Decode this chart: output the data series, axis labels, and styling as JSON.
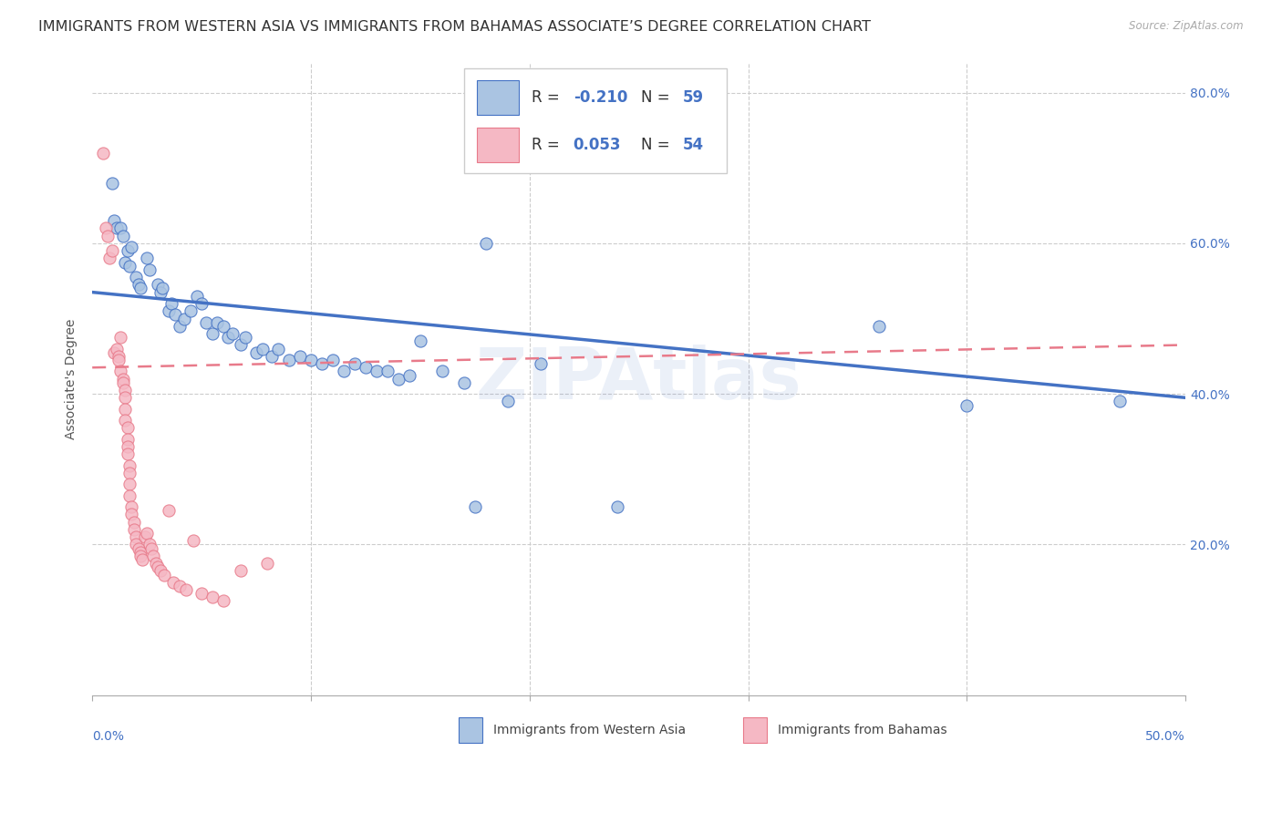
{
  "title": "IMMIGRANTS FROM WESTERN ASIA VS IMMIGRANTS FROM BAHAMAS ASSOCIATE’S DEGREE CORRELATION CHART",
  "source": "Source: ZipAtlas.com",
  "ylabel": "Associate's Degree",
  "xlim": [
    0.0,
    0.5
  ],
  "ylim": [
    0.0,
    0.84
  ],
  "xtick_ends": [
    0.0,
    0.5
  ],
  "xticklabels_ends": [
    "0.0%",
    "50.0%"
  ],
  "yticks": [
    0.0,
    0.2,
    0.4,
    0.6,
    0.8
  ],
  "yticklabels_right": [
    "",
    "20.0%",
    "40.0%",
    "60.0%",
    "80.0%"
  ],
  "watermark": "ZIPAtlas",
  "blue_color": "#aac4e2",
  "pink_color": "#f5b8c4",
  "blue_line_color": "#4472c4",
  "pink_line_color": "#e87a8a",
  "blue_scatter": [
    [
      0.009,
      0.68
    ],
    [
      0.01,
      0.63
    ],
    [
      0.011,
      0.62
    ],
    [
      0.013,
      0.62
    ],
    [
      0.014,
      0.61
    ],
    [
      0.015,
      0.575
    ],
    [
      0.016,
      0.59
    ],
    [
      0.017,
      0.57
    ],
    [
      0.018,
      0.595
    ],
    [
      0.02,
      0.555
    ],
    [
      0.021,
      0.545
    ],
    [
      0.022,
      0.54
    ],
    [
      0.025,
      0.58
    ],
    [
      0.026,
      0.565
    ],
    [
      0.03,
      0.545
    ],
    [
      0.031,
      0.535
    ],
    [
      0.032,
      0.54
    ],
    [
      0.035,
      0.51
    ],
    [
      0.036,
      0.52
    ],
    [
      0.038,
      0.505
    ],
    [
      0.04,
      0.49
    ],
    [
      0.042,
      0.5
    ],
    [
      0.045,
      0.51
    ],
    [
      0.048,
      0.53
    ],
    [
      0.05,
      0.52
    ],
    [
      0.052,
      0.495
    ],
    [
      0.055,
      0.48
    ],
    [
      0.057,
      0.495
    ],
    [
      0.06,
      0.49
    ],
    [
      0.062,
      0.475
    ],
    [
      0.064,
      0.48
    ],
    [
      0.068,
      0.465
    ],
    [
      0.07,
      0.475
    ],
    [
      0.075,
      0.455
    ],
    [
      0.078,
      0.46
    ],
    [
      0.082,
      0.45
    ],
    [
      0.085,
      0.46
    ],
    [
      0.09,
      0.445
    ],
    [
      0.095,
      0.45
    ],
    [
      0.1,
      0.445
    ],
    [
      0.105,
      0.44
    ],
    [
      0.11,
      0.445
    ],
    [
      0.115,
      0.43
    ],
    [
      0.12,
      0.44
    ],
    [
      0.125,
      0.435
    ],
    [
      0.13,
      0.43
    ],
    [
      0.135,
      0.43
    ],
    [
      0.14,
      0.42
    ],
    [
      0.145,
      0.425
    ],
    [
      0.15,
      0.47
    ],
    [
      0.16,
      0.43
    ],
    [
      0.17,
      0.415
    ],
    [
      0.175,
      0.25
    ],
    [
      0.18,
      0.6
    ],
    [
      0.19,
      0.39
    ],
    [
      0.205,
      0.44
    ],
    [
      0.24,
      0.25
    ],
    [
      0.36,
      0.49
    ],
    [
      0.4,
      0.385
    ],
    [
      0.47,
      0.39
    ]
  ],
  "pink_scatter": [
    [
      0.005,
      0.72
    ],
    [
      0.006,
      0.62
    ],
    [
      0.007,
      0.61
    ],
    [
      0.008,
      0.58
    ],
    [
      0.009,
      0.59
    ],
    [
      0.01,
      0.455
    ],
    [
      0.011,
      0.46
    ],
    [
      0.012,
      0.45
    ],
    [
      0.012,
      0.445
    ],
    [
      0.013,
      0.475
    ],
    [
      0.013,
      0.43
    ],
    [
      0.014,
      0.42
    ],
    [
      0.014,
      0.415
    ],
    [
      0.015,
      0.405
    ],
    [
      0.015,
      0.395
    ],
    [
      0.015,
      0.38
    ],
    [
      0.015,
      0.365
    ],
    [
      0.016,
      0.355
    ],
    [
      0.016,
      0.34
    ],
    [
      0.016,
      0.33
    ],
    [
      0.016,
      0.32
    ],
    [
      0.017,
      0.305
    ],
    [
      0.017,
      0.295
    ],
    [
      0.017,
      0.28
    ],
    [
      0.017,
      0.265
    ],
    [
      0.018,
      0.25
    ],
    [
      0.018,
      0.24
    ],
    [
      0.019,
      0.23
    ],
    [
      0.019,
      0.22
    ],
    [
      0.02,
      0.21
    ],
    [
      0.02,
      0.2
    ],
    [
      0.021,
      0.195
    ],
    [
      0.022,
      0.19
    ],
    [
      0.022,
      0.185
    ],
    [
      0.023,
      0.18
    ],
    [
      0.024,
      0.21
    ],
    [
      0.025,
      0.215
    ],
    [
      0.026,
      0.2
    ],
    [
      0.027,
      0.195
    ],
    [
      0.028,
      0.185
    ],
    [
      0.029,
      0.175
    ],
    [
      0.03,
      0.17
    ],
    [
      0.031,
      0.165
    ],
    [
      0.033,
      0.16
    ],
    [
      0.035,
      0.245
    ],
    [
      0.037,
      0.15
    ],
    [
      0.04,
      0.145
    ],
    [
      0.043,
      0.14
    ],
    [
      0.046,
      0.205
    ],
    [
      0.05,
      0.135
    ],
    [
      0.055,
      0.13
    ],
    [
      0.06,
      0.125
    ],
    [
      0.068,
      0.165
    ],
    [
      0.08,
      0.175
    ]
  ],
  "blue_trend_x": [
    0.0,
    0.5
  ],
  "blue_trend_y": [
    0.535,
    0.395
  ],
  "pink_trend_x": [
    0.0,
    0.5
  ],
  "pink_trend_y": [
    0.435,
    0.465
  ],
  "bg_color": "#ffffff",
  "grid_color": "#cccccc",
  "title_fontsize": 11.5,
  "axis_fontsize": 10,
  "tick_fontsize": 10,
  "legend_fontsize": 12
}
